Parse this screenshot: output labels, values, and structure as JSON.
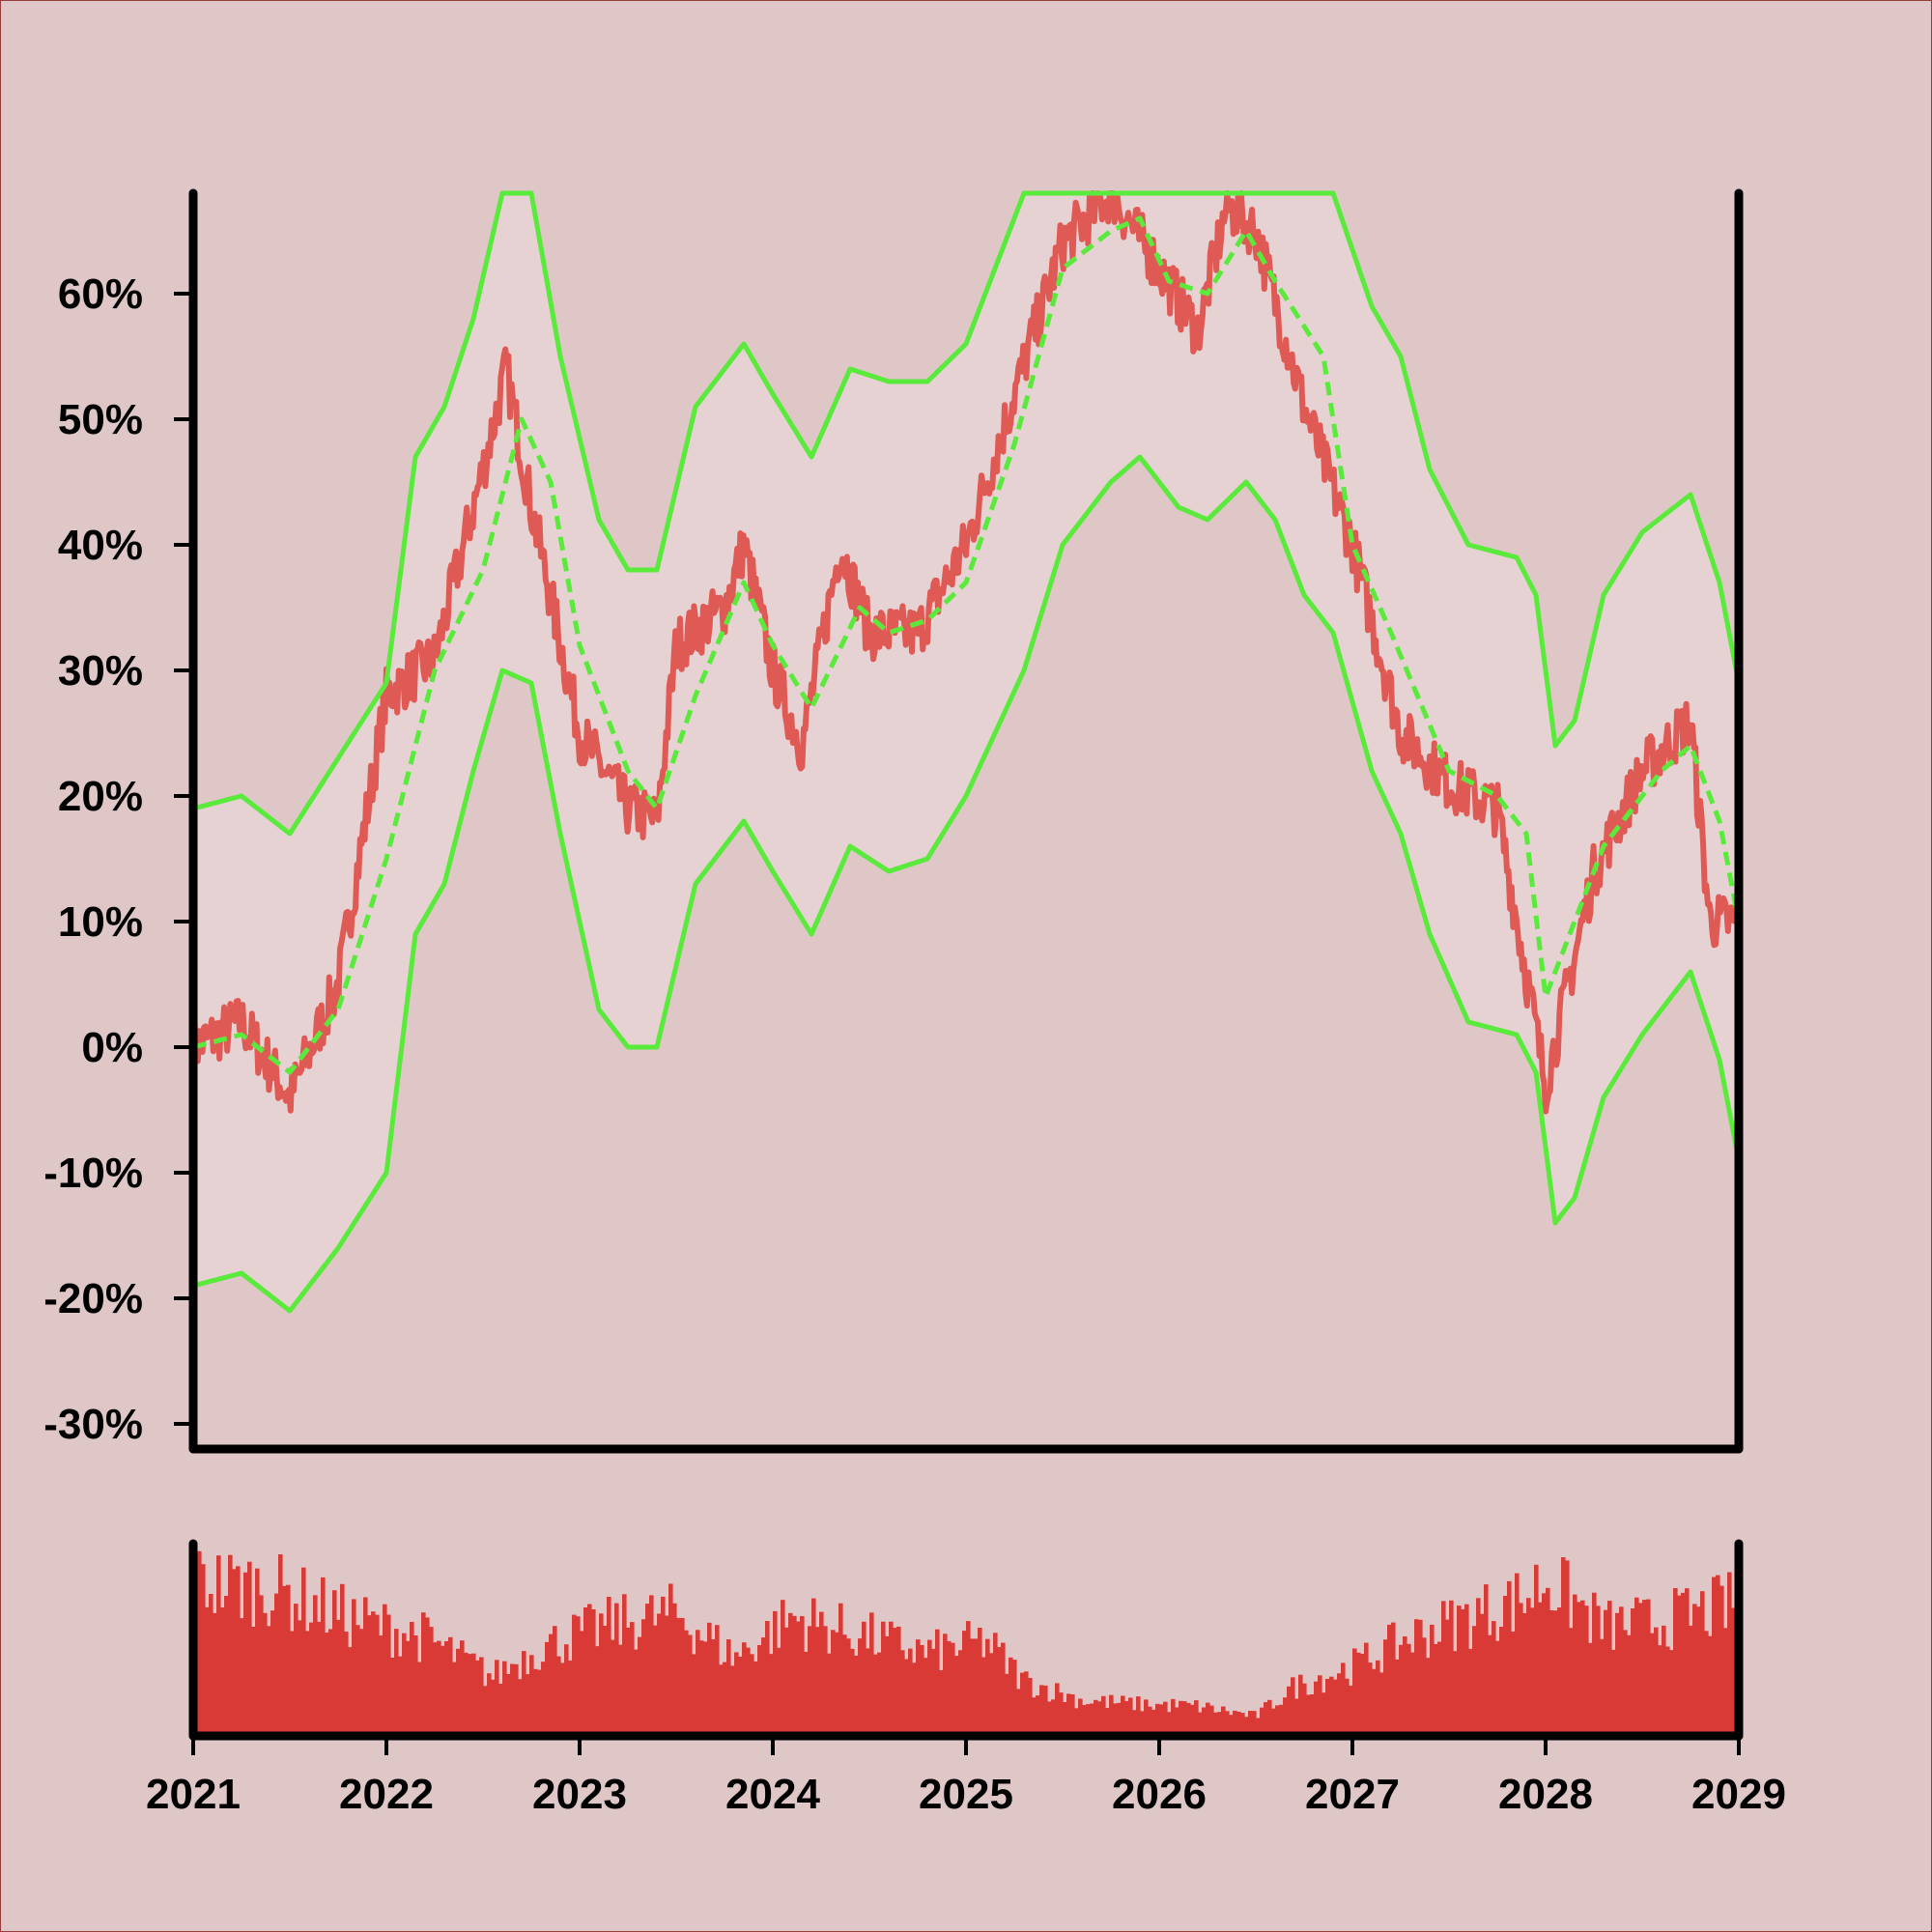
{
  "chart_data": {
    "type": "line",
    "colors": {
      "background": "#dfc7c7",
      "band_fill": "#e6d2d3",
      "price_line": "#e05a55",
      "band_lines": "#5aea3c",
      "volume_bars": "#d93a36",
      "axes": "#000000"
    },
    "main_panel": {
      "ylim": [
        -32,
        68
      ],
      "yticks": [
        -30,
        -20,
        -10,
        0,
        10,
        20,
        30,
        40,
        50,
        60
      ],
      "ytick_labels": [
        "-30%",
        "-20%",
        "-10%",
        "0%",
        "10%",
        "20%",
        "30%",
        "40%",
        "50%",
        "60%"
      ],
      "grid": false,
      "legend": "none"
    },
    "xlim": [
      2021.0,
      2029.0
    ],
    "xticks": [
      2021,
      2022,
      2023,
      2024,
      2025,
      2026,
      2027,
      2028,
      2029
    ],
    "xtick_labels": [
      "2021",
      "2022",
      "2023",
      "2024",
      "2025",
      "2026",
      "2027",
      "2028",
      "2029"
    ],
    "series": [
      {
        "role": "price",
        "style": "solid",
        "x": [
          2021.0,
          2021.25,
          2021.5,
          2021.75,
          2022.0,
          2022.25,
          2022.5,
          2022.62,
          2022.75,
          2023.0,
          2023.25,
          2023.4,
          2023.5,
          2023.75,
          2023.85,
          2024.0,
          2024.15,
          2024.35,
          2024.5,
          2024.75,
          2025.0,
          2025.25,
          2025.5,
          2025.75,
          2026.0,
          2026.2,
          2026.35,
          2026.5,
          2026.75,
          2027.0,
          2027.25,
          2027.5,
          2027.75,
          2028.0,
          2028.25,
          2028.5,
          2028.75,
          2028.85,
          2029.0
        ],
        "y": [
          0,
          2,
          -4,
          5,
          28,
          31,
          46,
          54,
          43,
          25,
          19,
          18,
          32,
          35,
          40,
          30,
          24,
          40,
          33,
          33,
          40,
          52,
          64,
          68,
          62,
          57,
          67,
          65,
          51,
          40,
          25,
          21,
          19,
          -3,
          14,
          22,
          26,
          10,
          10
        ]
      },
      {
        "role": "moving-average",
        "style": "dashed",
        "x": [
          2021.0,
          2021.25,
          2021.5,
          2021.75,
          2022.0,
          2022.25,
          2022.5,
          2022.7,
          2022.85,
          2023.0,
          2023.25,
          2023.4,
          2023.6,
          2023.85,
          2024.0,
          2024.2,
          2024.45,
          2024.6,
          2024.8,
          2025.0,
          2025.25,
          2025.5,
          2025.75,
          2025.9,
          2026.05,
          2026.25,
          2026.45,
          2026.6,
          2026.85,
          2027.0,
          2027.2,
          2027.5,
          2027.75,
          2027.9,
          2028.0,
          2028.3,
          2028.6,
          2028.75,
          2028.9,
          2029.0
        ],
        "y": [
          0,
          1,
          -2,
          3,
          15,
          30,
          38,
          50,
          45,
          32,
          22,
          19,
          28,
          37,
          32,
          27,
          35,
          33,
          34,
          37,
          48,
          62,
          65,
          66,
          61,
          60,
          65,
          61,
          55,
          40,
          33,
          22,
          20,
          17,
          4,
          16,
          22,
          24,
          18,
          10
        ]
      },
      {
        "role": "upper-band",
        "style": "solid",
        "x": [
          2021.0,
          2021.25,
          2021.5,
          2021.75,
          2022.0,
          2022.15,
          2022.3,
          2022.45,
          2022.6,
          2022.75,
          2022.9,
          2023.1,
          2023.25,
          2023.4,
          2023.6,
          2023.85,
          2024.0,
          2024.2,
          2024.4,
          2024.6,
          2024.8,
          2025.0,
          2025.3,
          2025.5,
          2025.75,
          2026.0,
          2026.5,
          2026.9,
          2027.1,
          2027.25,
          2027.4,
          2027.6,
          2027.85,
          2027.95,
          2028.05,
          2028.15,
          2028.3,
          2028.5,
          2028.75,
          2028.9,
          2029.0
        ],
        "y": [
          19,
          20,
          17,
          23,
          29,
          47,
          51,
          58,
          68,
          68,
          55,
          42,
          38,
          38,
          51,
          56,
          52,
          47,
          54,
          53,
          53,
          56,
          68,
          68,
          68,
          68,
          68,
          68,
          59,
          55,
          46,
          40,
          39,
          36,
          24,
          26,
          36,
          41,
          44,
          37,
          29
        ]
      },
      {
        "role": "lower-band",
        "style": "solid",
        "x": [
          2021.0,
          2021.25,
          2021.5,
          2021.75,
          2022.0,
          2022.15,
          2022.3,
          2022.45,
          2022.6,
          2022.75,
          2022.9,
          2023.1,
          2023.25,
          2023.4,
          2023.6,
          2023.85,
          2024.0,
          2024.2,
          2024.4,
          2024.6,
          2024.8,
          2025.0,
          2025.3,
          2025.5,
          2025.75,
          2025.9,
          2026.1,
          2026.25,
          2026.45,
          2026.6,
          2026.75,
          2026.9,
          2027.1,
          2027.25,
          2027.4,
          2027.6,
          2027.85,
          2027.95,
          2028.05,
          2028.15,
          2028.3,
          2028.5,
          2028.75,
          2028.9,
          2029.0
        ],
        "y": [
          -19,
          -18,
          -21,
          -16,
          -10,
          9,
          13,
          22,
          30,
          29,
          17,
          3,
          0,
          0,
          13,
          18,
          14,
          9,
          16,
          14,
          15,
          20,
          30,
          40,
          45,
          47,
          43,
          42,
          45,
          42,
          36,
          33,
          22,
          17,
          9,
          2,
          1,
          -2,
          -14,
          -12,
          -4,
          1,
          6,
          -1,
          -9
        ]
      }
    ],
    "volume": {
      "type": "bar",
      "ylim": [
        0,
        100
      ],
      "seed": 7,
      "profile_x": [
        2021.0,
        2021.4,
        2021.8,
        2022.2,
        2022.55,
        2022.8,
        2023.1,
        2023.5,
        2023.8,
        2024.1,
        2024.5,
        2024.8,
        2025.1,
        2025.3,
        2025.6,
        2025.9,
        2026.2,
        2026.5,
        2026.7,
        2027.0,
        2027.3,
        2027.6,
        2027.9,
        2028.0,
        2028.3,
        2028.6,
        2028.9,
        2029.0
      ],
      "profile_y": [
        78,
        75,
        60,
        50,
        30,
        45,
        55,
        62,
        40,
        60,
        50,
        42,
        48,
        28,
        18,
        16,
        15,
        10,
        25,
        35,
        50,
        60,
        70,
        80,
        55,
        58,
        65,
        68
      ]
    }
  }
}
